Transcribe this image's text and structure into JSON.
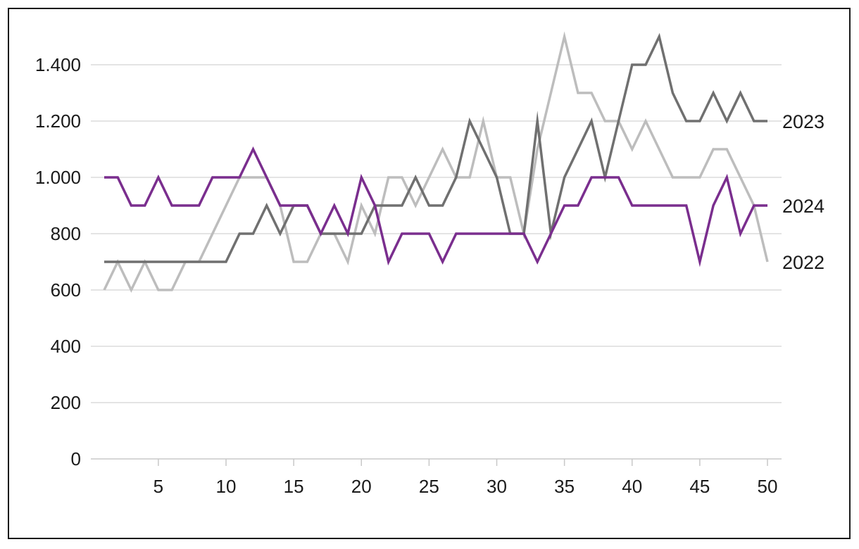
{
  "chart_data": {
    "type": "line",
    "title": "",
    "xlabel": "",
    "ylabel": "",
    "xlim": [
      1,
      50
    ],
    "ylim": [
      0,
      1400
    ],
    "x_ticks": [
      5,
      10,
      15,
      20,
      25,
      30,
      35,
      40,
      45,
      50
    ],
    "y_ticks": [
      0,
      200,
      400,
      600,
      800,
      1000,
      1200,
      1400
    ],
    "y_tick_labels": [
      "0",
      "200",
      "400",
      "600",
      "800",
      "1.000",
      "1.200",
      "1.400"
    ],
    "grid": "horizontal",
    "legend": "series labels at right end of lines",
    "x": [
      1,
      2,
      3,
      4,
      5,
      6,
      7,
      8,
      9,
      10,
      11,
      12,
      13,
      14,
      15,
      16,
      17,
      18,
      19,
      20,
      21,
      22,
      23,
      24,
      25,
      26,
      27,
      28,
      29,
      30,
      31,
      32,
      33,
      34,
      35,
      36,
      37,
      38,
      39,
      40,
      41,
      42,
      43,
      44,
      45,
      46,
      47,
      48,
      49,
      50
    ],
    "series": [
      {
        "name": "2022",
        "color": "#bdbdbd",
        "values": [
          600,
          700,
          600,
          700,
          600,
          600,
          700,
          700,
          800,
          900,
          1000,
          1000,
          1000,
          900,
          700,
          700,
          800,
          800,
          700,
          900,
          800,
          1000,
          1000,
          900,
          1000,
          1100,
          1000,
          1000,
          1200,
          1000,
          1000,
          800,
          1100,
          1300,
          1500,
          1300,
          1300,
          1200,
          1200,
          1100,
          1200,
          1100,
          1000,
          1000,
          1000,
          1100,
          1100,
          1000,
          900,
          700
        ]
      },
      {
        "name": "2023",
        "color": "#707070",
        "values": [
          700,
          700,
          700,
          700,
          700,
          700,
          700,
          700,
          700,
          700,
          800,
          800,
          900,
          800,
          900,
          900,
          800,
          800,
          800,
          800,
          900,
          900,
          900,
          1000,
          900,
          900,
          1000,
          1200,
          1100,
          1000,
          800,
          800,
          1200,
          800,
          1000,
          1100,
          1200,
          1000,
          1200,
          1400,
          1400,
          1500,
          1300,
          1200,
          1200,
          1300,
          1200,
          1300,
          1200,
          1200
        ]
      },
      {
        "name": "2024",
        "color": "#7a2e8e",
        "values": [
          1000,
          1000,
          900,
          900,
          1000,
          900,
          900,
          900,
          1000,
          1000,
          1000,
          1100,
          1000,
          900,
          900,
          900,
          800,
          900,
          800,
          1000,
          900,
          700,
          800,
          800,
          800,
          700,
          800,
          800,
          800,
          800,
          800,
          800,
          700,
          800,
          900,
          900,
          1000,
          1000,
          1000,
          900,
          900,
          900,
          900,
          900,
          700,
          900,
          1000,
          800,
          900,
          900
        ]
      }
    ],
    "end_labels": [
      {
        "series": "2023",
        "text": "2023"
      },
      {
        "series": "2024",
        "text": "2024"
      },
      {
        "series": "2022",
        "text": "2022"
      }
    ]
  }
}
